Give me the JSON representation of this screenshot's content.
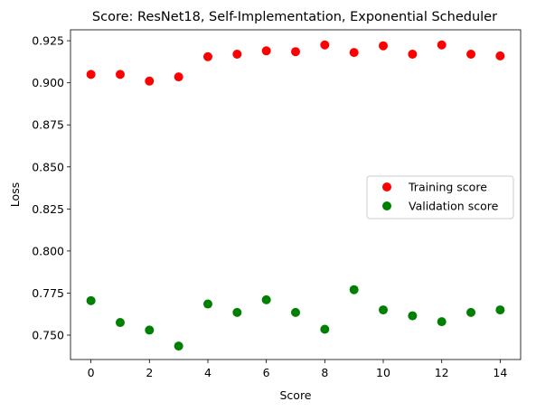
{
  "chart_data": {
    "type": "scatter",
    "title": "Score: ResNet18, Self-Implementation, Exponential Scheduler",
    "xlabel": "Score",
    "ylabel": "Loss",
    "xlim": [
      -0.7,
      14.7
    ],
    "ylim": [
      0.7355,
      0.9315
    ],
    "xticks": [
      0,
      2,
      4,
      6,
      8,
      10,
      12,
      14
    ],
    "xtick_labels": [
      "0",
      "2",
      "4",
      "6",
      "8",
      "10",
      "12",
      "14"
    ],
    "yticks": [
      0.75,
      0.775,
      0.8,
      0.825,
      0.85,
      0.875,
      0.9,
      0.925
    ],
    "ytick_labels": [
      "0.750",
      "0.775",
      "0.800",
      "0.825",
      "0.850",
      "0.875",
      "0.900",
      "0.925"
    ],
    "grid": false,
    "legend_position": "center-right",
    "series": [
      {
        "name": "Training score",
        "color": "#ff0000",
        "x": [
          0,
          1,
          2,
          3,
          4,
          5,
          6,
          7,
          8,
          9,
          10,
          11,
          12,
          13,
          14
        ],
        "y": [
          0.905,
          0.905,
          0.901,
          0.9035,
          0.9155,
          0.917,
          0.919,
          0.9185,
          0.9225,
          0.918,
          0.922,
          0.917,
          0.9225,
          0.917,
          0.916
        ]
      },
      {
        "name": "Validation score",
        "color": "#008000",
        "x": [
          0,
          1,
          2,
          3,
          4,
          5,
          6,
          7,
          8,
          9,
          10,
          11,
          12,
          13,
          14
        ],
        "y": [
          0.7705,
          0.7575,
          0.753,
          0.7435,
          0.7685,
          0.7635,
          0.771,
          0.7635,
          0.7535,
          0.777,
          0.765,
          0.7615,
          0.758,
          0.7635,
          0.765
        ]
      }
    ]
  }
}
